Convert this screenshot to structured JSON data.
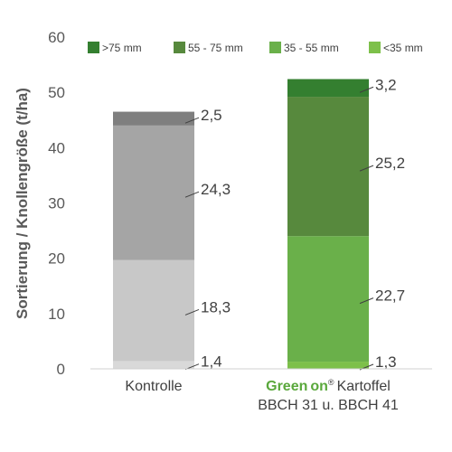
{
  "chart_data": {
    "type": "bar",
    "stacked": true,
    "ylabel": "Sortierung / Knollengröße (t/ha)",
    "ylim": [
      0,
      60
    ],
    "yticks": [
      0,
      10,
      20,
      30,
      40,
      50,
      60
    ],
    "grid": false,
    "legend_position": "top",
    "categories": [
      {
        "lines": [
          "Kontrolle"
        ]
      },
      {
        "brand": "Green",
        "brand2": "on",
        "brand_mark": "®",
        "lines": [
          "Kartoffel",
          "BBCH 31 u. BBCH 41"
        ]
      }
    ],
    "series": [
      {
        "name": "<35 mm",
        "values": [
          1.4,
          1.3
        ],
        "labels": [
          "1,4",
          "1,3"
        ]
      },
      {
        "name": "35 - 55 mm",
        "values": [
          18.3,
          22.7
        ],
        "labels": [
          "18,3",
          "22,7"
        ]
      },
      {
        "name": "55 - 75 mm",
        "values": [
          24.3,
          25.2
        ],
        "labels": [
          "24,3",
          "25,2"
        ]
      },
      {
        "name": ">75 mm",
        "values": [
          2.5,
          3.2
        ],
        "labels": [
          "2,5",
          "3,2"
        ]
      }
    ],
    "legend_order": [
      ">75 mm",
      "55 - 75 mm",
      "35 - 55 mm",
      "<35 mm"
    ],
    "colors": {
      "legend": {
        "<35 mm": "#7dc04a",
        "35 - 55 mm": "#6ab04a",
        "55 - 75 mm": "#57893d",
        ">75 mm": "#347f30"
      },
      "bars": [
        [
          "#d9d9d9",
          "#c8c8c8",
          "#a5a5a5",
          "#7f7f7f"
        ],
        [
          "#7dc04a",
          "#6ab04a",
          "#57893d",
          "#347f30"
        ]
      ]
    }
  }
}
